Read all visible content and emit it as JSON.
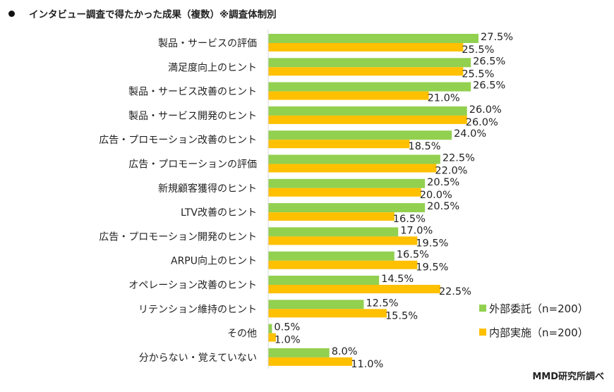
{
  "chart_data": {
    "type": "bar",
    "orientation": "horizontal",
    "title": "インタビュー調査で得たかった成果（複数）※調査体制別",
    "categories": [
      "製品・サービスの評価",
      "満足度向上のヒント",
      "製品・サービス改善のヒント",
      "製品・サービス開発のヒント",
      "広告・プロモーション改善のヒント",
      "広告・プロモーションの評価",
      "新規顧客獲得のヒント",
      "LTV改善のヒント",
      "広告・プロモーション開発のヒント",
      "ARPU向上のヒント",
      "オペレーション改善のヒント",
      "リテンション維持のヒント",
      "その他",
      "分からない・覚えていない"
    ],
    "series": [
      {
        "name": "外部委託（n=200）",
        "color": "#92D050",
        "values": [
          27.5,
          26.5,
          26.5,
          26.0,
          24.0,
          22.5,
          20.5,
          20.5,
          17.0,
          16.5,
          14.5,
          12.5,
          0.5,
          8.0
        ]
      },
      {
        "name": "内部実施（n=200）",
        "color": "#FFC000",
        "values": [
          25.5,
          25.5,
          21.0,
          26.0,
          18.5,
          22.0,
          20.0,
          16.5,
          19.5,
          19.5,
          22.5,
          15.5,
          1.0,
          11.0
        ]
      }
    ],
    "value_suffix": "%",
    "xlim": [
      0,
      30
    ],
    "grid": false,
    "legend_position": "bottom-right"
  },
  "source": "MMD研究所調べ"
}
